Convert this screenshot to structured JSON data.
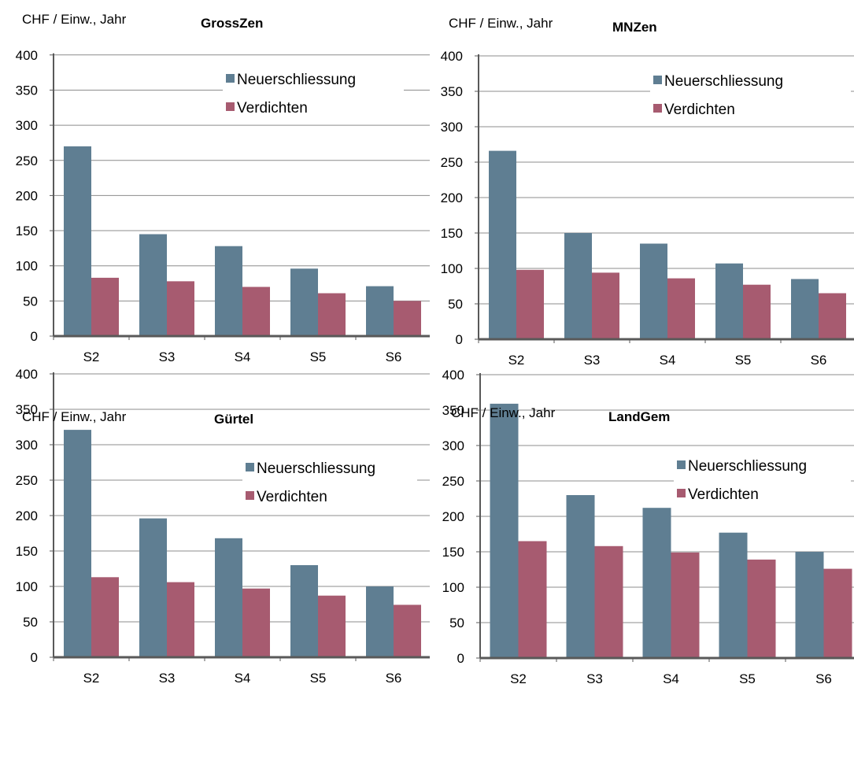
{
  "chart_data": [
    {
      "type": "bar",
      "title": "GrossZen",
      "ylabel": "CHF / Einw., Jahr",
      "xlabel": "",
      "categories": [
        "S2",
        "S3",
        "S4",
        "S5",
        "S6"
      ],
      "ylim": [
        0,
        400
      ],
      "yticks": [
        0,
        50,
        100,
        150,
        200,
        250,
        300,
        350,
        400
      ],
      "grid": true,
      "legend_position": "top-right",
      "series": [
        {
          "name": "Neuerschliessung",
          "color": "#5f7e92",
          "values": [
            270,
            145,
            128,
            96,
            71
          ]
        },
        {
          "name": "Verdichten",
          "color": "#a75b70",
          "values": [
            83,
            78,
            70,
            61,
            50
          ]
        }
      ]
    },
    {
      "type": "bar",
      "title": "MNZen",
      "ylabel": "CHF / Einw., Jahr",
      "xlabel": "",
      "categories": [
        "S2",
        "S3",
        "S4",
        "S5",
        "S6"
      ],
      "ylim": [
        0,
        400
      ],
      "yticks": [
        0,
        50,
        100,
        150,
        200,
        250,
        300,
        350,
        400
      ],
      "grid": true,
      "legend_position": "top-right",
      "series": [
        {
          "name": "Neuerschliessung",
          "color": "#5f7e92",
          "values": [
            266,
            150,
            135,
            107,
            85
          ]
        },
        {
          "name": "Verdichten",
          "color": "#a75b70",
          "values": [
            98,
            94,
            86,
            77,
            65
          ]
        }
      ]
    },
    {
      "type": "bar",
      "title": "Gürtel",
      "ylabel": "CHF / Einw., Jahr",
      "xlabel": "",
      "categories": [
        "S2",
        "S3",
        "S4",
        "S5",
        "S6"
      ],
      "ylim": [
        0,
        400
      ],
      "yticks": [
        0,
        50,
        100,
        150,
        200,
        250,
        300,
        350,
        400
      ],
      "grid": true,
      "legend_position": "top-right",
      "series": [
        {
          "name": "Neuerschliessung",
          "color": "#5f7e92",
          "values": [
            321,
            196,
            168,
            130,
            100
          ]
        },
        {
          "name": "Verdichten",
          "color": "#a75b70",
          "values": [
            113,
            106,
            97,
            87,
            74
          ]
        }
      ]
    },
    {
      "type": "bar",
      "title": "LandGem",
      "ylabel": "CHF / Einw., Jahr",
      "xlabel": "",
      "categories": [
        "S2",
        "S3",
        "S4",
        "S5",
        "S6"
      ],
      "ylim": [
        0,
        400
      ],
      "yticks": [
        0,
        50,
        100,
        150,
        200,
        250,
        300,
        350,
        400
      ],
      "grid": true,
      "legend_position": "top-right",
      "series": [
        {
          "name": "Neuerschliessung",
          "color": "#5f7e92",
          "values": [
            359,
            230,
            212,
            177,
            150
          ]
        },
        {
          "name": "Verdichten",
          "color": "#a75b70",
          "values": [
            165,
            158,
            149,
            139,
            126
          ]
        }
      ]
    }
  ]
}
